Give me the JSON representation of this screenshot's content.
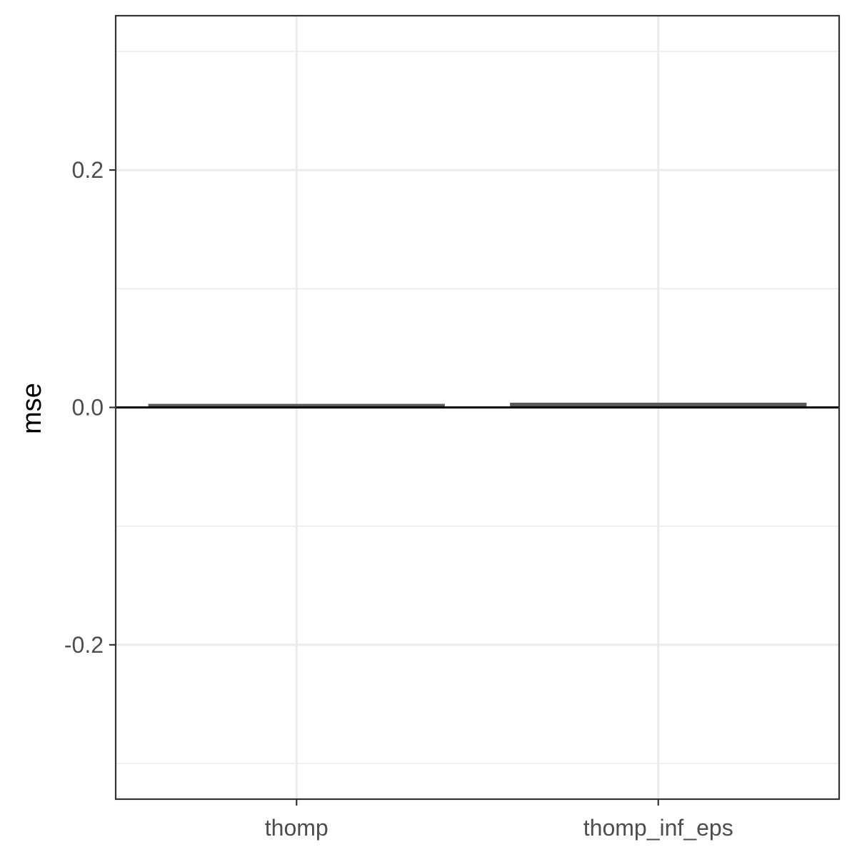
{
  "chart_data": {
    "type": "bar",
    "title": "",
    "xlabel": "",
    "ylabel": "mse",
    "categories": [
      "thomp",
      "thomp_inf_eps"
    ],
    "values": [
      0.003,
      0.004
    ],
    "ylim": [
      -0.33,
      0.33
    ],
    "yticks": [
      -0.2,
      0.0,
      0.2
    ],
    "ytick_labels": [
      "-0.2",
      "0.0",
      "0.2"
    ],
    "yminor": [
      -0.3,
      -0.1,
      0.1,
      0.3
    ],
    "reference_line": 0,
    "grid": true,
    "legend": "none",
    "colors": {
      "bar": "#595959",
      "grid": "#ebebeb",
      "frame": "#333333",
      "reference_line": "#000000",
      "tick_label": "#4d4d4d"
    }
  }
}
